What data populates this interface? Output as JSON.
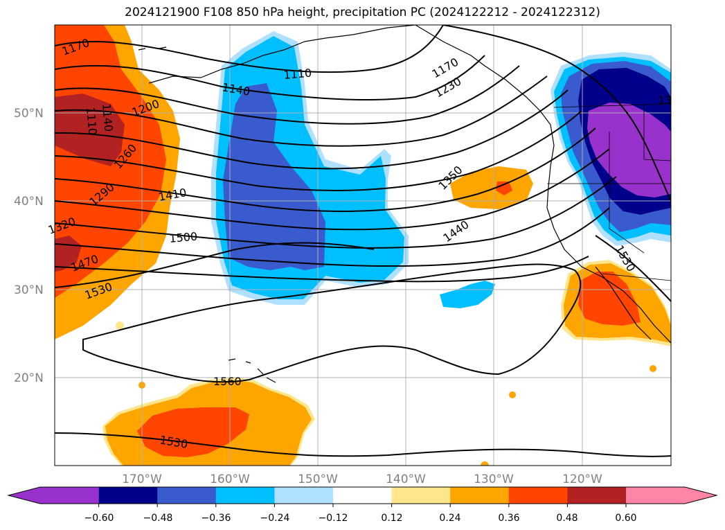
{
  "title": "2024121900 F108 850 hPa height, precipitation PC (2024122212 - 2024122312)",
  "map": {
    "lat_labels": [
      "50°N",
      "40°N",
      "30°N",
      "20°N"
    ],
    "lon_labels": [
      "170°W",
      "160°W",
      "150°W",
      "140°W",
      "130°W",
      "120°W"
    ],
    "contour_labels": [
      "1170",
      "1110",
      "1140",
      "1200",
      "1260",
      "1290",
      "1320",
      "1410",
      "1470",
      "1500",
      "1530",
      "1560",
      "1530",
      "1110",
      "1140",
      "1170",
      "1230",
      "1350",
      "1440",
      "1530",
      "13"
    ]
  },
  "colorbar": {
    "ticks": [
      "−0.60",
      "−0.48",
      "−0.36",
      "−0.24",
      "−0.12",
      "0.12",
      "0.24",
      "0.36",
      "0.48",
      "0.60"
    ],
    "colors": [
      "#9932cc",
      "#00008b",
      "#3a5bcd",
      "#00bfff",
      "#b0e0ff",
      "#ffffff",
      "#ffe68c",
      "#ffa500",
      "#ff4500",
      "#b22222",
      "#ff85a6"
    ]
  },
  "colors": {
    "purple": "#9932cc",
    "navy": "#00008b",
    "royal": "#3a5bcd",
    "sky": "#00bfff",
    "pale_blue": "#b0e0ff",
    "pale_yellow": "#ffe68c",
    "orange": "#ffa500",
    "red_orange": "#ff4500",
    "brick": "#b22222",
    "pink": "#ff85a6",
    "grid": "#b0b0b0"
  }
}
